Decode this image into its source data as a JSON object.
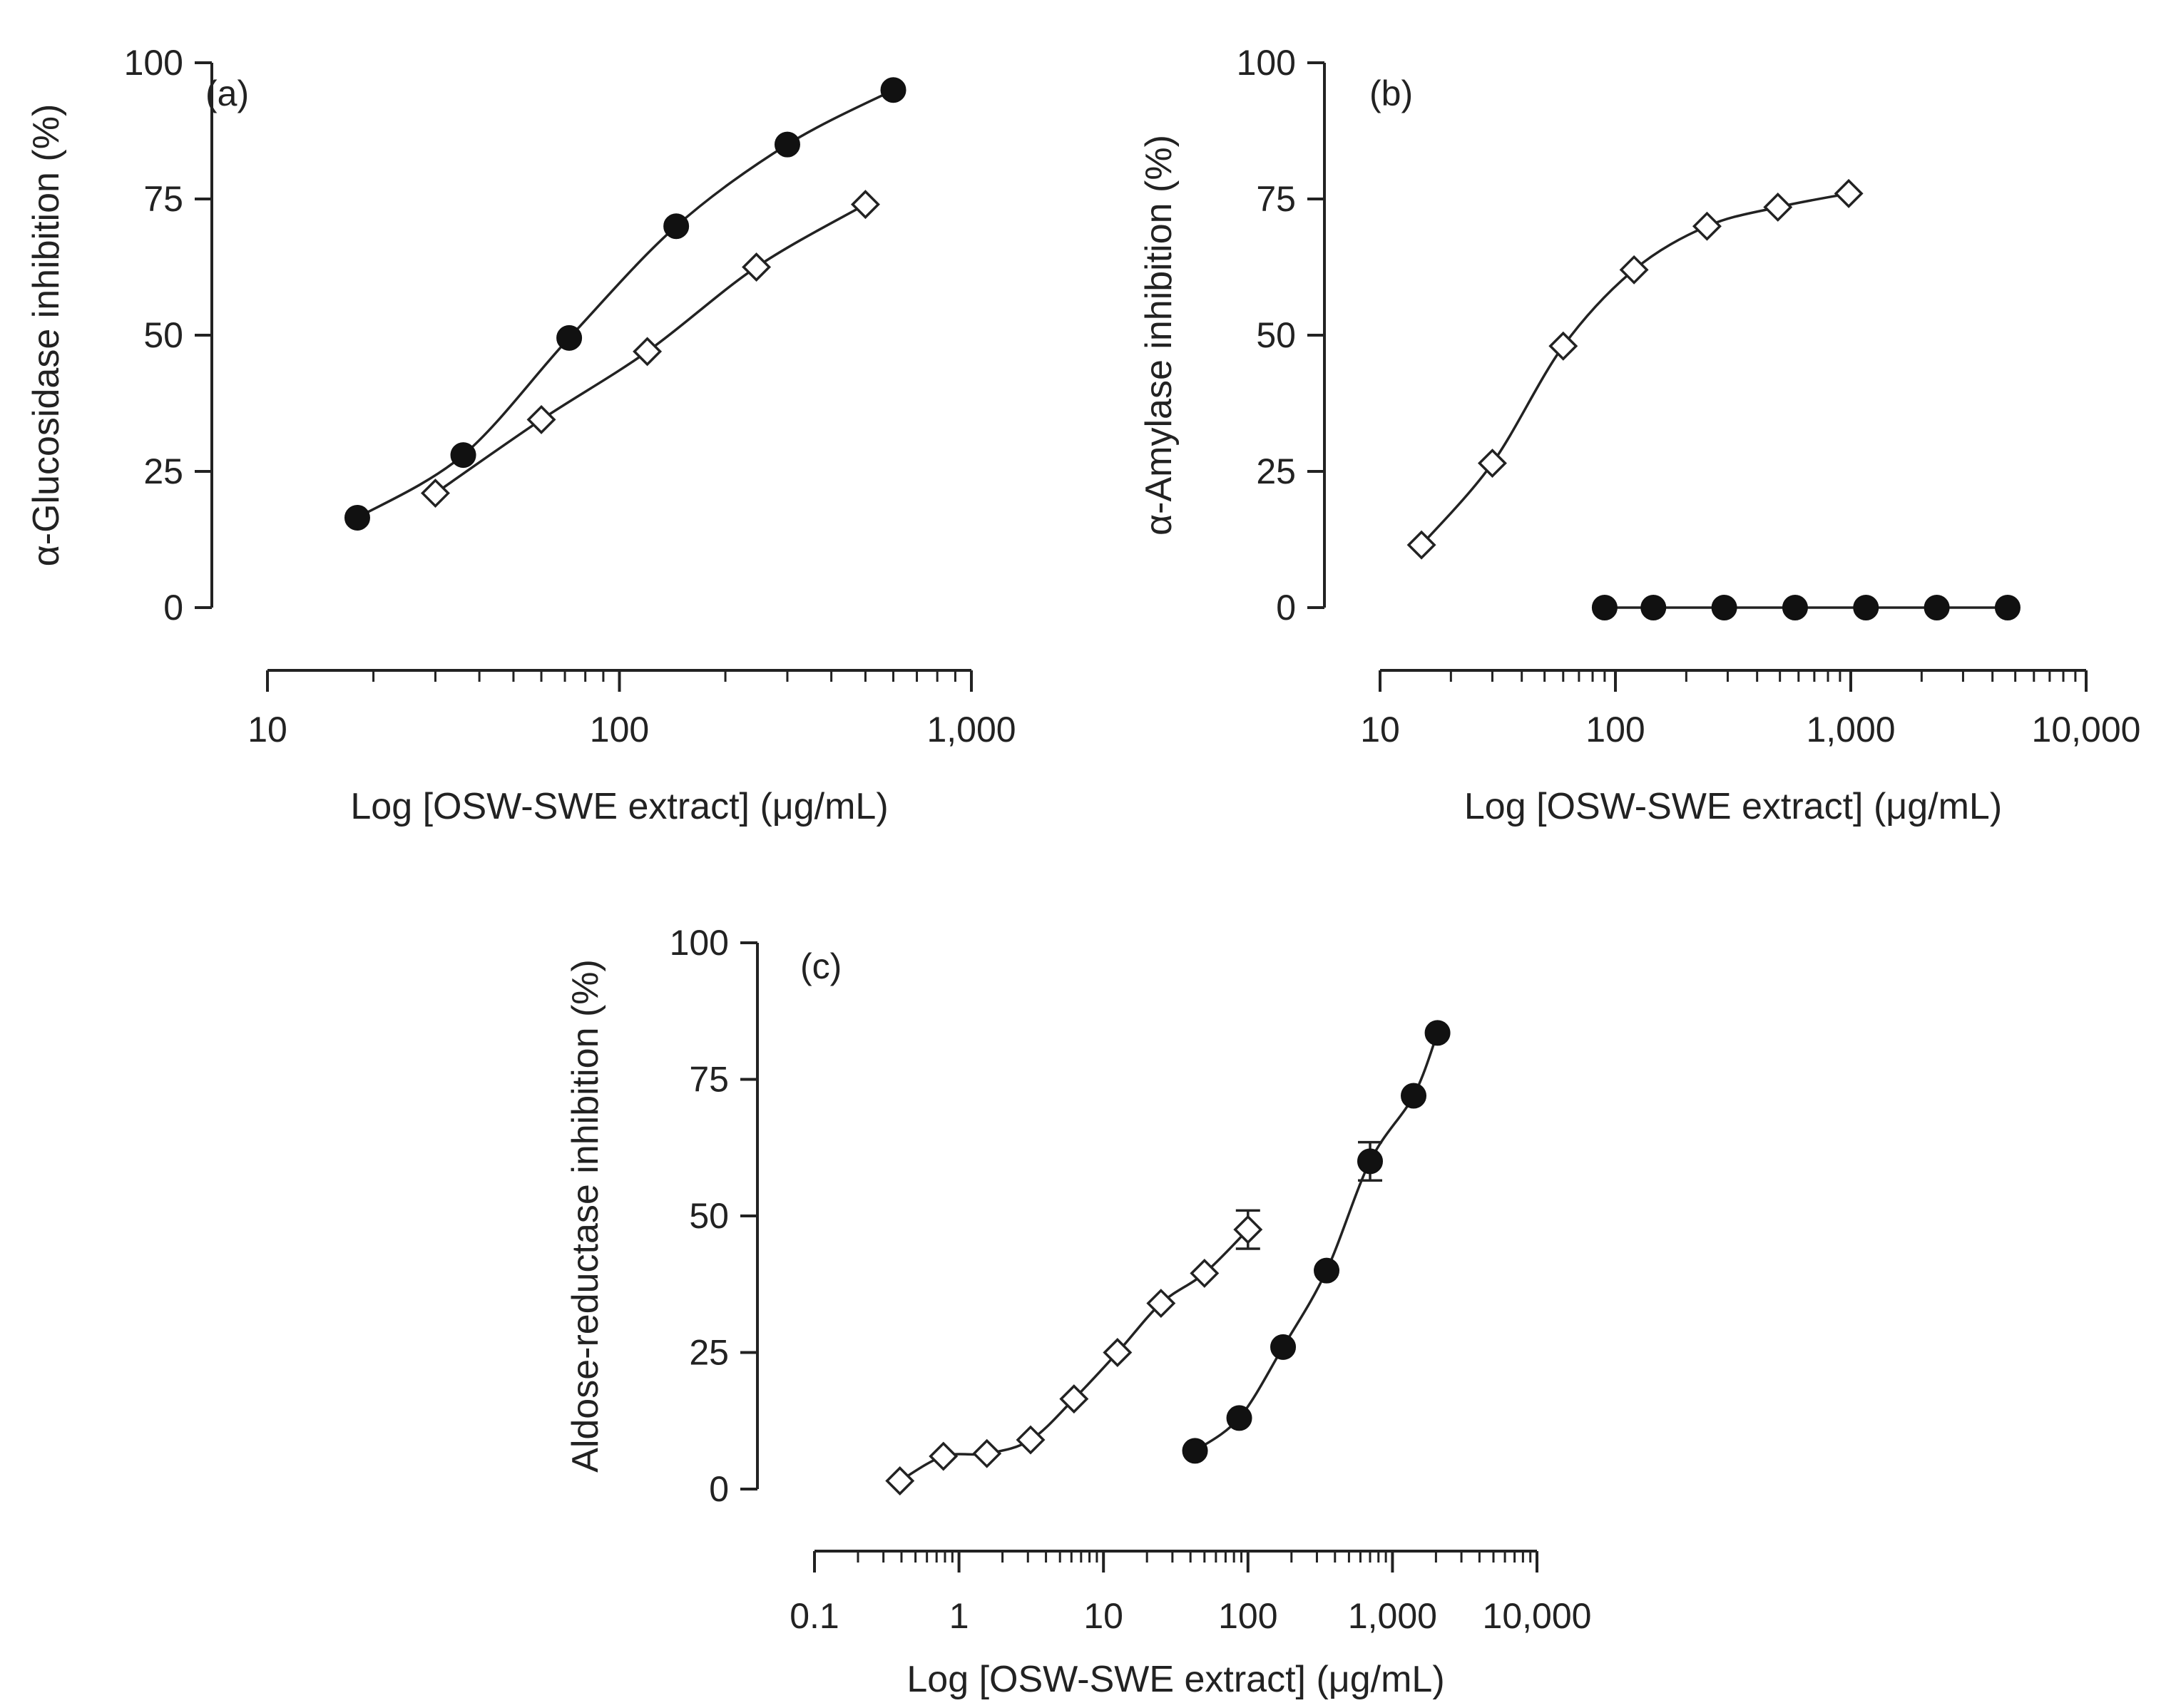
{
  "chart_data": [
    {
      "id": "a",
      "type": "scatter",
      "panel_label": "(a)",
      "xlabel": "Log [OSW-SWE extract] (μg/mL)",
      "ylabel": "α-Glucosidase inhibition (%)",
      "xscale": "log",
      "xlim": [
        10,
        1000
      ],
      "ylim": [
        0,
        100
      ],
      "yticks": [
        0,
        25,
        50,
        75,
        100
      ],
      "xticks": [
        10,
        100,
        1000
      ],
      "xtick_labels": [
        "10",
        "100",
        "1,000"
      ],
      "series": [
        {
          "name": "filled-circles",
          "marker": "circle-filled",
          "x": [
            18,
            36,
            72,
            145,
            300,
            600
          ],
          "y": [
            16.5,
            28,
            49.5,
            70,
            85,
            95
          ]
        },
        {
          "name": "open-diamonds",
          "marker": "diamond-open",
          "x": [
            30,
            60,
            120,
            245,
            500
          ],
          "y": [
            21,
            34.5,
            47,
            62.5,
            74
          ]
        }
      ]
    },
    {
      "id": "b",
      "type": "scatter",
      "panel_label": "(b)",
      "xlabel": "Log [OSW-SWE extract] (μg/mL)",
      "ylabel": "α-Amylase inhibition (%)",
      "xscale": "log",
      "xlim": [
        10,
        10000
      ],
      "ylim": [
        0,
        100
      ],
      "yticks": [
        0,
        25,
        50,
        75,
        100
      ],
      "xticks": [
        10,
        100,
        1000,
        10000
      ],
      "xtick_labels": [
        "10",
        "100",
        "1,000",
        "10,000"
      ],
      "series": [
        {
          "name": "open-diamonds",
          "marker": "diamond-open",
          "x": [
            15,
            30,
            60,
            120,
            245,
            490,
            980
          ],
          "y": [
            11.5,
            26.5,
            48,
            62,
            70,
            73.5,
            76
          ]
        },
        {
          "name": "filled-circles",
          "marker": "circle-filled",
          "x": [
            90,
            145,
            290,
            580,
            1160,
            2320,
            4640
          ],
          "y": [
            0,
            0,
            0,
            0,
            0,
            0,
            0
          ]
        }
      ]
    },
    {
      "id": "c",
      "type": "scatter",
      "panel_label": "(c)",
      "xlabel": "Log [OSW-SWE extract] (μg/mL)",
      "ylabel": "Aldose-reductase inhibition (%)",
      "xscale": "log",
      "xlim": [
        0.1,
        10000
      ],
      "ylim": [
        0,
        100
      ],
      "yticks": [
        0,
        25,
        50,
        75,
        100
      ],
      "xticks": [
        0.1,
        1,
        10,
        100,
        1000,
        10000
      ],
      "xtick_labels": [
        "0.1",
        "1",
        "10",
        "100",
        "1,000",
        "10,000"
      ],
      "series": [
        {
          "name": "open-diamonds",
          "marker": "diamond-open",
          "x": [
            0.39,
            0.78,
            1.56,
            3.13,
            6.25,
            12.5,
            25,
            50,
            100
          ],
          "y": [
            1.5,
            6,
            6.5,
            9,
            16.5,
            25,
            34,
            39.5,
            47.5
          ],
          "err": [
            0,
            0,
            0,
            0,
            0,
            0,
            0,
            0,
            3.5
          ]
        },
        {
          "name": "filled-circles",
          "marker": "circle-filled",
          "x": [
            43,
            87,
            175,
            350,
            700,
            1400,
            2050
          ],
          "y": [
            7,
            13,
            26,
            40,
            60,
            72,
            83.5
          ],
          "err": [
            0,
            0,
            0,
            0,
            3.5,
            0,
            0
          ]
        }
      ]
    }
  ]
}
